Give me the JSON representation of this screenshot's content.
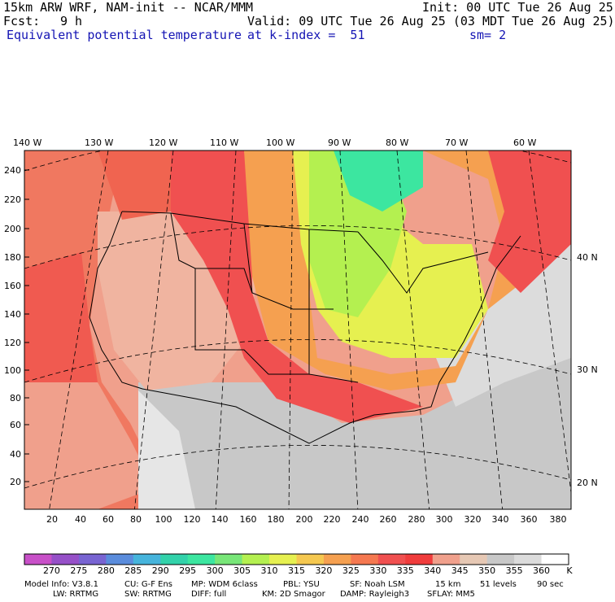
{
  "header": {
    "model": "15km ARW WRF, NAM-init -- NCAR/MMM",
    "init": "Init: 00 UTC Tue 26 Aug 25",
    "fcst_label": "Fcst:",
    "fcst_value": "9 h",
    "valid": "Valid: 09 UTC Tue 26 Aug 25 (03 MDT Tue 26 Aug 25)",
    "field": "Equivalent potential temperature",
    "level": "at k-index =  51",
    "smooth": "sm= 2"
  },
  "map": {
    "lon_labels": [
      "140 W",
      "130 W",
      "120 W",
      "110 W",
      "100 W",
      "90 W",
      "80 W",
      "70 W",
      "60 W"
    ],
    "lat_labels": [
      "40 N",
      "30 N",
      "20 N"
    ],
    "y_ticks": [
      "240",
      "220",
      "200",
      "180",
      "160",
      "140",
      "120",
      "100",
      "80",
      "60",
      "40",
      "20"
    ],
    "x_ticks": [
      "20",
      "40",
      "60",
      "80",
      "100",
      "120",
      "140",
      "160",
      "180",
      "200",
      "220",
      "240",
      "260",
      "280",
      "300",
      "320",
      "340",
      "360",
      "380"
    ],
    "colors": {
      "cool": "#3ce6a0",
      "mid_green": "#96e650",
      "yellow": "#e6f050",
      "orange": "#f5a050",
      "red": "#f05050",
      "salmon": "#f0b4a0",
      "gray": "#c8c8c8",
      "light_gray": "#e6e6e6",
      "white": "#ffffff"
    }
  },
  "colorbar": {
    "labels": [
      "270",
      "275",
      "280",
      "285",
      "290",
      "295",
      "300",
      "305",
      "310",
      "315",
      "320",
      "325",
      "330",
      "335",
      "340",
      "345",
      "350",
      "355",
      "360"
    ],
    "unit": "K",
    "colors": [
      "#c850c8",
      "#9650c8",
      "#7864d2",
      "#5a8cdc",
      "#46b4dc",
      "#32d2aa",
      "#3ce6a0",
      "#78e678",
      "#b4f050",
      "#e6f050",
      "#f5c850",
      "#f5a050",
      "#f57850",
      "#f05050",
      "#f03c3c",
      "#f0a08c",
      "#e6c8b4",
      "#c8c8c8",
      "#dcdcdc",
      "#ffffff"
    ]
  },
  "footer": {
    "line1_a": "Model Info: V3.8.1",
    "line1_b": "CU: G-F Ens",
    "line1_c": "MP: WDM 6class",
    "line1_d": "PBL: YSU",
    "line1_e": "SF: Noah LSM",
    "line1_f": "15 km",
    "line1_g": "51 levels",
    "line1_h": "90 sec",
    "line2_a": "LW: RRTMG",
    "line2_b": "SW: RRTMG",
    "line2_c": "DIFF: full",
    "line2_d": "KM: 2D Smagor",
    "line2_e": "DAMP: Rayleigh3",
    "line2_f": "SFLAY: MM5"
  }
}
